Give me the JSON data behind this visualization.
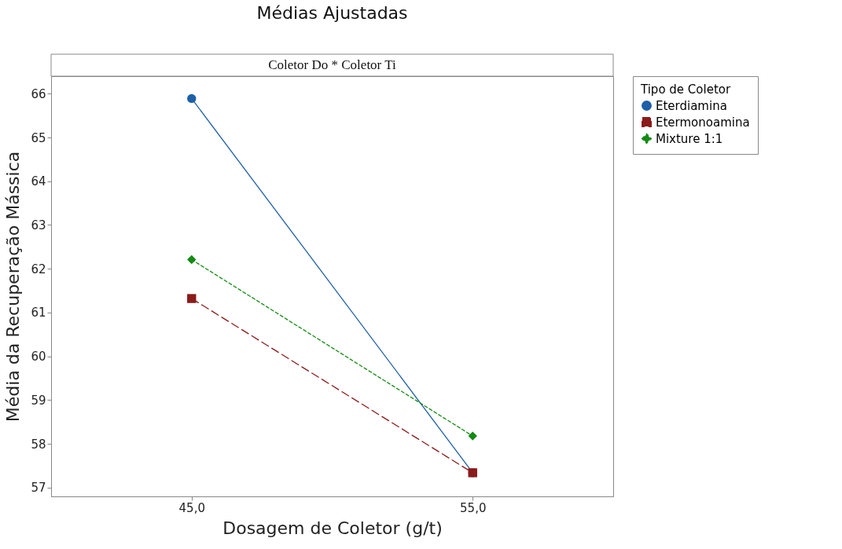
{
  "chart_data": {
    "type": "line",
    "title": "Médias Ajustadas",
    "subtitle": "Coletor Do * Coletor Ti",
    "xlabel": "Dosagem de Coletor (g/t)",
    "ylabel": "Média da Recuperação Mássica",
    "legend_title": "Tipo de Coletor",
    "categories": [
      "45,0",
      "55,0"
    ],
    "series": [
      {
        "name": "Eterdiamina",
        "color": "#1f5fa8",
        "values": [
          65.89,
          57.34
        ],
        "marker": "circle",
        "line_style": "solid"
      },
      {
        "name": "Etermonoamina",
        "color": "#8b1a1a",
        "values": [
          61.32,
          57.34
        ],
        "marker": "square",
        "line_style": "dashed"
      },
      {
        "name": "Mixture 1:1",
        "color": "#138a13",
        "values": [
          62.21,
          58.18
        ],
        "marker": "diamond",
        "line_style": "dotted"
      }
    ],
    "ylim": [
      56.8,
      66.4
    ],
    "yticks": [
      57,
      58,
      59,
      60,
      61,
      62,
      63,
      64,
      65,
      66
    ],
    "grid": false,
    "legend": "top right"
  }
}
